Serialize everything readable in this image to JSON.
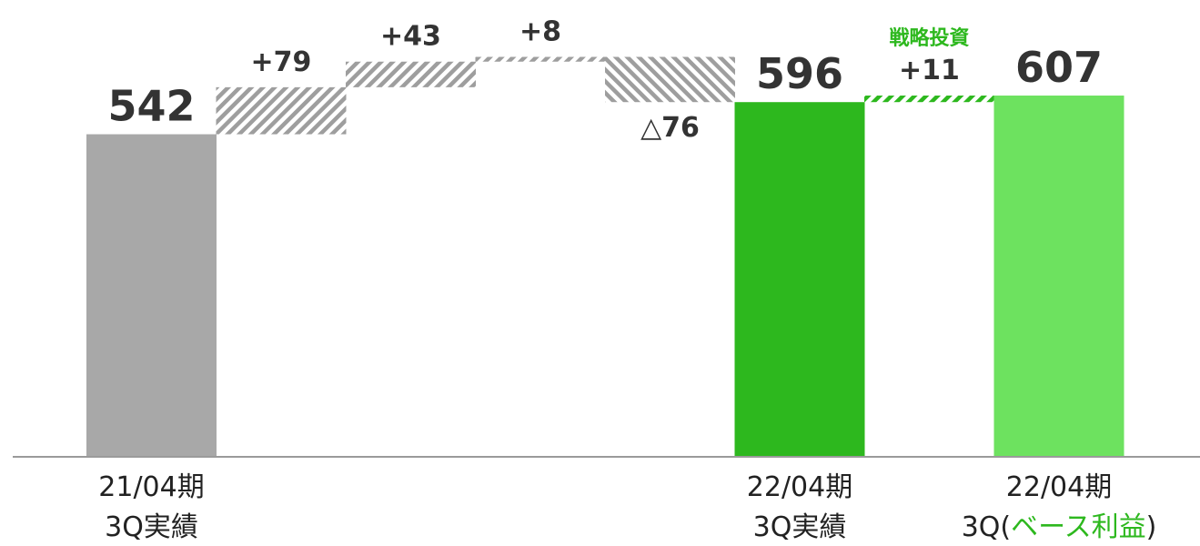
{
  "chart_data": {
    "type": "waterfall",
    "title": "",
    "xlabel": "",
    "ylabel": "",
    "ylim": [
      0,
      640
    ],
    "grid": false,
    "legend": "none",
    "bars": [
      {
        "kind": "total",
        "value": 542,
        "value_label": "542",
        "category_lines": [
          "21/04期",
          "3Q実績"
        ],
        "color": "#a8a8a8"
      },
      {
        "kind": "delta",
        "value": 79,
        "value_label": "+79",
        "category_lines": [],
        "color": "#9e9e9e"
      },
      {
        "kind": "delta",
        "value": 43,
        "value_label": "+43",
        "category_lines": [],
        "color": "#9e9e9e"
      },
      {
        "kind": "delta",
        "value": 8,
        "value_label": "+8",
        "category_lines": [],
        "color": "#9e9e9e"
      },
      {
        "kind": "delta",
        "value": -76,
        "value_label": "△76",
        "category_lines": [],
        "color": "#9e9e9e"
      },
      {
        "kind": "total",
        "value": 596,
        "value_label": "596",
        "category_lines": [
          "22/04期",
          "3Q実績"
        ],
        "color": "#2db81e"
      },
      {
        "kind": "delta",
        "value": 11,
        "value_label": "+11",
        "annotation": "戦略投資",
        "category_lines": [],
        "color": "#2db81e"
      },
      {
        "kind": "total",
        "value": 607,
        "value_label": "607",
        "category_lines": [
          "22/04期"
        ],
        "category_line2_parts": [
          "3Q(",
          "ベース利益",
          ")"
        ],
        "color": "#6de25f"
      }
    ],
    "colors": {
      "axis": "#9a9a9a",
      "text": "#333333",
      "annotation": "#2db81e"
    }
  }
}
